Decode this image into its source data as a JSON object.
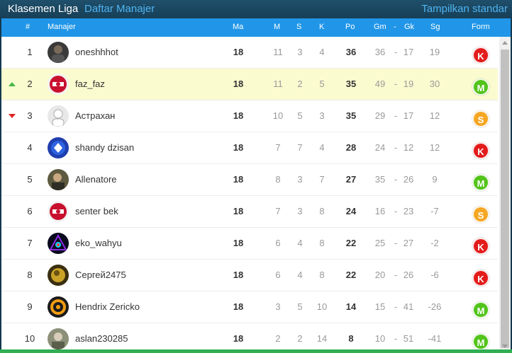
{
  "topbar": {
    "title": "Klasemen Liga",
    "tab": "Daftar Manajer",
    "right_link": "Tampilkan standar"
  },
  "table": {
    "headers": {
      "rank": "#",
      "manager": "Manajer",
      "ma": "Ma",
      "m": "M",
      "s": "S",
      "k": "K",
      "po": "Po",
      "gm": "Gm",
      "dash": "-",
      "gk": "Gk",
      "sg": "Sg",
      "form": "Form"
    },
    "rows": [
      {
        "rank": "1",
        "trend": "",
        "name": "oneshhhot",
        "ma": "18",
        "m": "11",
        "s": "3",
        "k": "4",
        "po": "36",
        "gm": "36",
        "gk": "17",
        "sg": "19",
        "form": "K",
        "form_color": "#e31b1b",
        "highlight": false,
        "avatar": "avatar-dark"
      },
      {
        "rank": "2",
        "trend": "up",
        "name": "faz_faz",
        "ma": "18",
        "m": "11",
        "s": "2",
        "k": "5",
        "po": "35",
        "gm": "49",
        "gk": "19",
        "sg": "30",
        "form": "M",
        "form_color": "#52c41a",
        "highlight": true,
        "avatar": "avatar-red-crest"
      },
      {
        "rank": "3",
        "trend": "down",
        "name": "Астрахан",
        "ma": "18",
        "m": "10",
        "s": "5",
        "k": "3",
        "po": "35",
        "gm": "29",
        "gk": "17",
        "sg": "12",
        "form": "S",
        "form_color": "#f5a623",
        "highlight": false,
        "avatar": "avatar-default"
      },
      {
        "rank": "4",
        "trend": "",
        "name": "shandy dzisan",
        "ma": "18",
        "m": "7",
        "s": "7",
        "k": "4",
        "po": "28",
        "gm": "24",
        "gk": "12",
        "sg": "12",
        "form": "K",
        "form_color": "#e31b1b",
        "highlight": false,
        "avatar": "avatar-blue-crest"
      },
      {
        "rank": "5",
        "trend": "",
        "name": "Allenatore",
        "ma": "18",
        "m": "8",
        "s": "3",
        "k": "7",
        "po": "27",
        "gm": "35",
        "gk": "26",
        "sg": "9",
        "form": "M",
        "form_color": "#52c41a",
        "highlight": false,
        "avatar": "avatar-photo"
      },
      {
        "rank": "6",
        "trend": "",
        "name": "senter bek",
        "ma": "18",
        "m": "7",
        "s": "3",
        "k": "8",
        "po": "24",
        "gm": "16",
        "gk": "23",
        "sg": "-7",
        "form": "S",
        "form_color": "#f5a623",
        "highlight": false,
        "avatar": "avatar-red-crest"
      },
      {
        "rank": "7",
        "trend": "",
        "name": "eko_wahyu",
        "ma": "18",
        "m": "6",
        "s": "4",
        "k": "8",
        "po": "22",
        "gm": "25",
        "gk": "27",
        "sg": "-2",
        "form": "K",
        "form_color": "#e31b1b",
        "highlight": false,
        "avatar": "avatar-neon"
      },
      {
        "rank": "8",
        "trend": "",
        "name": "Сергей2475",
        "ma": "18",
        "m": "6",
        "s": "4",
        "k": "8",
        "po": "22",
        "gm": "20",
        "gk": "26",
        "sg": "-6",
        "form": "K",
        "form_color": "#e31b1b",
        "highlight": false,
        "avatar": "avatar-gold"
      },
      {
        "rank": "9",
        "trend": "",
        "name": "Hendrix Zericko",
        "ma": "18",
        "m": "3",
        "s": "5",
        "k": "10",
        "po": "14",
        "gm": "15",
        "gk": "41",
        "sg": "-26",
        "form": "M",
        "form_color": "#52c41a",
        "highlight": false,
        "avatar": "avatar-orange-crest"
      },
      {
        "rank": "10",
        "trend": "",
        "name": "aslan230285",
        "ma": "18",
        "m": "2",
        "s": "2",
        "k": "14",
        "po": "8",
        "gm": "10",
        "gk": "51",
        "sg": "-41",
        "form": "M",
        "form_color": "#52c41a",
        "highlight": false,
        "avatar": "avatar-photo-gray"
      }
    ]
  }
}
